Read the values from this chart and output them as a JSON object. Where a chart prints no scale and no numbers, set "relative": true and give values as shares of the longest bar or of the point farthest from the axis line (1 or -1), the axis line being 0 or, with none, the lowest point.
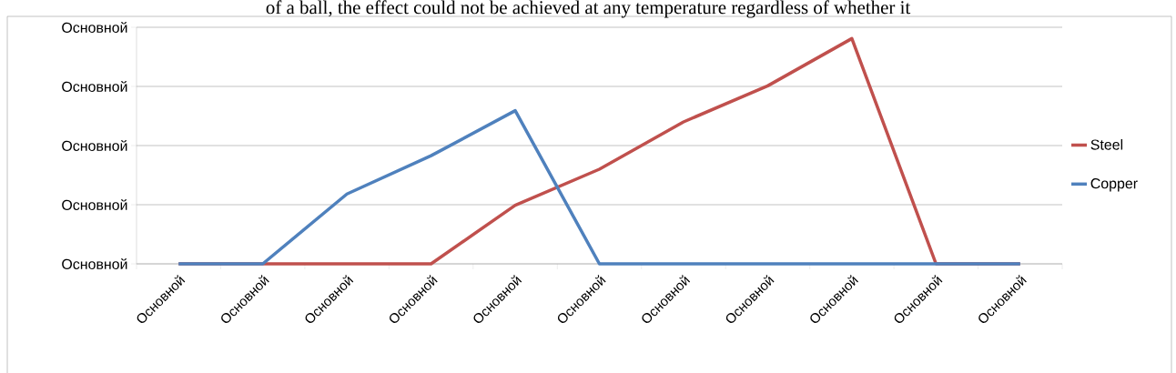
{
  "chart_data": {
    "type": "line",
    "relative": true,
    "annotations": [
      "of a ball, the effect could not be achieved at any temperature regardless of whether it",
      "Основной",
      "Основной",
      "Основной",
      "Основной",
      "Основной"
    ],
    "categories": [
      "Основной",
      "Основной",
      "Основной",
      "Основной",
      "Основной",
      "Основной",
      "Основной",
      "Основной",
      "Основной",
      "Основной",
      "Основной"
    ],
    "series": [
      {
        "name": "Steel",
        "color": "#c0504d",
        "values": [
          0,
          0,
          0,
          0,
          0.26,
          0.42,
          0.63,
          0.79,
          1,
          0,
          0
        ]
      },
      {
        "name": "Copper",
        "color": "#4f81bd",
        "values": [
          0,
          0,
          0.31,
          0.48,
          0.68,
          0,
          0,
          0,
          0,
          0,
          0
        ]
      }
    ],
    "grid": "y",
    "legend": "right",
    "marker": "none",
    "line_style": "solid"
  }
}
